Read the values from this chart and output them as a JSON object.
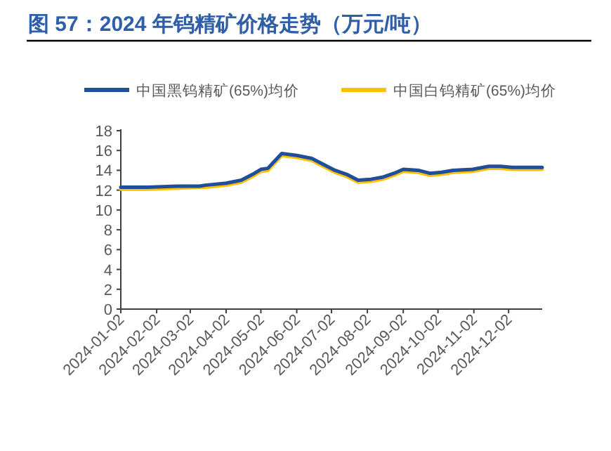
{
  "chart_data": {
    "type": "line",
    "title": "图 57：2024 年钨精矿价格走势（万元/吨）",
    "x": [
      "2024-01-02",
      "2024-01-25",
      "2024-02-20",
      "2024-03-10",
      "2024-03-15",
      "2024-04-02",
      "2024-04-15",
      "2024-04-25",
      "2024-05-02",
      "2024-05-08",
      "2024-05-20",
      "2024-06-02",
      "2024-06-15",
      "2024-06-25",
      "2024-07-05",
      "2024-07-15",
      "2024-07-25",
      "2024-08-05",
      "2024-08-15",
      "2024-08-25",
      "2024-09-02",
      "2024-09-15",
      "2024-09-25",
      "2024-10-05",
      "2024-10-15",
      "2024-11-01",
      "2024-11-15",
      "2024-11-25",
      "2024-12-05",
      "2024-12-31"
    ],
    "series": [
      {
        "name": "中国黑钨精矿(65%)均价",
        "color": "#1f4e9c",
        "values": [
          12.3,
          12.3,
          12.4,
          12.4,
          12.5,
          12.7,
          13.0,
          13.6,
          14.1,
          14.2,
          15.7,
          15.5,
          15.2,
          14.6,
          14.0,
          13.6,
          13.0,
          13.1,
          13.3,
          13.7,
          14.1,
          14.0,
          13.7,
          13.8,
          14.0,
          14.1,
          14.4,
          14.4,
          14.3,
          14.3
        ]
      },
      {
        "name": "中国白钨精矿(65%)均价",
        "color": "#ffc000",
        "values": [
          12.1,
          12.1,
          12.2,
          12.3,
          12.3,
          12.5,
          12.8,
          13.4,
          13.9,
          14.0,
          15.5,
          15.3,
          15.0,
          14.4,
          13.8,
          13.4,
          12.8,
          12.9,
          13.1,
          13.5,
          13.9,
          13.8,
          13.5,
          13.6,
          13.8,
          13.9,
          14.2,
          14.2,
          14.1,
          14.1
        ]
      }
    ],
    "xlim": [
      "2024-01-02",
      "2024-12-31"
    ],
    "xticks": [
      "2024-01-02",
      "2024-02-02",
      "2024-03-02",
      "2024-04-02",
      "2024-05-02",
      "2024-06-02",
      "2024-07-02",
      "2024-08-02",
      "2024-09-02",
      "2024-10-02",
      "2024-11-02",
      "2024-12-02"
    ],
    "ylim": [
      0,
      18
    ],
    "yticks": [
      0,
      2,
      4,
      6,
      8,
      10,
      12,
      14,
      16,
      18
    ],
    "legend": "top",
    "grid": false,
    "marker": "none",
    "line_style": "solid"
  }
}
